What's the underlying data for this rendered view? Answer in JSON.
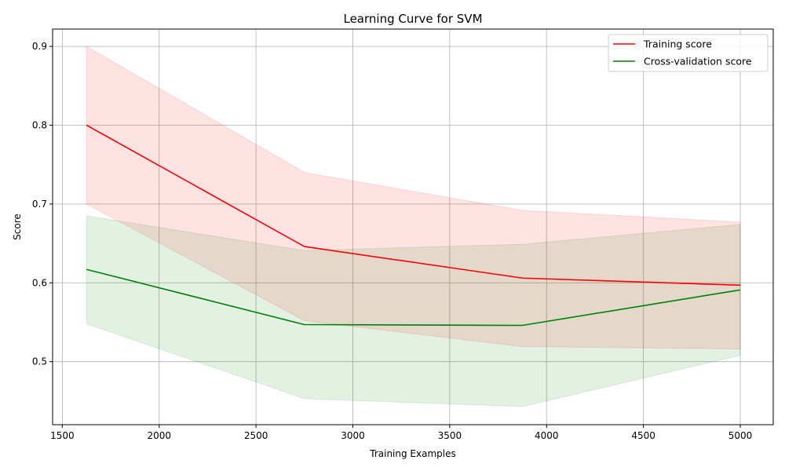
{
  "chart_data": {
    "type": "line",
    "title": "Learning Curve for SVM",
    "xlabel": "Training Examples",
    "ylabel": "Score",
    "xlim": [
      1450,
      5170
    ],
    "ylim": [
      0.42,
      0.922
    ],
    "xticks": [
      1500,
      2000,
      2500,
      3000,
      3500,
      4000,
      4500,
      5000
    ],
    "xtick_labels": [
      "1500",
      "2000",
      "2500",
      "3000",
      "3500",
      "4000",
      "4500",
      "5000"
    ],
    "yticks": [
      0.5,
      0.6,
      0.7,
      0.8,
      0.9
    ],
    "ytick_labels": [
      "0.5",
      "0.6",
      "0.7",
      "0.8",
      "0.9"
    ],
    "grid": true,
    "legend_position": "top-right",
    "x": [
      1625,
      2750,
      3875,
      5000
    ],
    "series": [
      {
        "name": "Training score",
        "color": "#ff0000",
        "band_color": "#ffcccc",
        "values": [
          0.8,
          0.646,
          0.606,
          0.597
        ],
        "lower": [
          0.7,
          0.552,
          0.519,
          0.516
        ],
        "upper": [
          0.9,
          0.74,
          0.692,
          0.677
        ]
      },
      {
        "name": "Cross-validation score",
        "color": "#008000",
        "band_color": "#c4e3c4",
        "values": [
          0.617,
          0.547,
          0.546,
          0.591
        ],
        "lower": [
          0.548,
          0.453,
          0.443,
          0.508
        ],
        "upper": [
          0.685,
          0.641,
          0.649,
          0.674
        ]
      }
    ]
  }
}
